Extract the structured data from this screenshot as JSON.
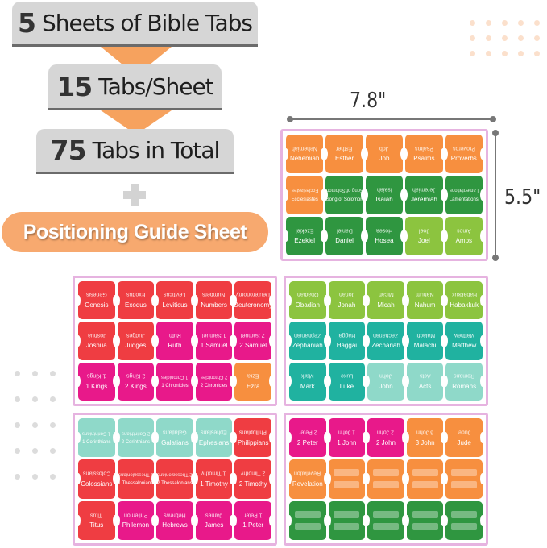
{
  "headline": {
    "line1": {
      "num": "5",
      "text": "Sheets of Bible Tabs"
    },
    "line2": {
      "num": "15",
      "text": "Tabs/Sheet"
    },
    "line3": {
      "num": "75",
      "text": "Tabs in Total"
    },
    "plus_icon": "plus",
    "guide": "Positioning Guide Sheet"
  },
  "dimensions": {
    "width": "7.8\"",
    "height": "5.5\""
  },
  "colors": {
    "O": "#f78f3f",
    "G": "#2f9640",
    "DG": "#2a8a3a",
    "L": "#8cc43f",
    "T": "#20b2a0",
    "LT": "#8fd9c9",
    "R": "#ef3d42",
    "P": "#e8198a",
    "banner": "#d6d6d6",
    "accent": "#f6a25e"
  },
  "sheets": [
    {
      "tabs": [
        [
          "Nehemiah",
          "O"
        ],
        [
          "Esther",
          "O"
        ],
        [
          "Job",
          "O"
        ],
        [
          "Psalms",
          "O"
        ],
        [
          "Proverbs",
          "O"
        ],
        [
          "Ecclesiastes",
          "O"
        ],
        [
          "Song of Solomon",
          "G"
        ],
        [
          "Isaiah",
          "G"
        ],
        [
          "Jeremiah",
          "G"
        ],
        [
          "Lamentations",
          "G"
        ],
        [
          "Ezekiel",
          "G"
        ],
        [
          "Daniel",
          "G"
        ],
        [
          "Hosea",
          "G"
        ],
        [
          "Joel",
          "L"
        ],
        [
          "Amos",
          "L"
        ]
      ]
    },
    {
      "tabs": [
        [
          "Genesis",
          "R"
        ],
        [
          "Exodus",
          "R"
        ],
        [
          "Leviticus",
          "R"
        ],
        [
          "Numbers",
          "R"
        ],
        [
          "Deuteronomy",
          "R"
        ],
        [
          "Joshua",
          "R"
        ],
        [
          "Judges",
          "R"
        ],
        [
          "Ruth",
          "P"
        ],
        [
          "1 Samuel",
          "P"
        ],
        [
          "2 Samuel",
          "P"
        ],
        [
          "1 Kings",
          "P"
        ],
        [
          "2 Kings",
          "P"
        ],
        [
          "1 Chronicles",
          "P"
        ],
        [
          "2 Chronicles",
          "P"
        ],
        [
          "Ezra",
          "O"
        ]
      ]
    },
    {
      "tabs": [
        [
          "Obadiah",
          "L"
        ],
        [
          "Jonah",
          "L"
        ],
        [
          "Micah",
          "L"
        ],
        [
          "Nahum",
          "L"
        ],
        [
          "Habakkuk",
          "L"
        ],
        [
          "Zephaniah",
          "T"
        ],
        [
          "Haggai",
          "T"
        ],
        [
          "Zechariah",
          "T"
        ],
        [
          "Malachi",
          "T"
        ],
        [
          "Matthew",
          "T"
        ],
        [
          "Mark",
          "T"
        ],
        [
          "Luke",
          "T"
        ],
        [
          "John",
          "LT"
        ],
        [
          "Acts",
          "LT"
        ],
        [
          "Romans",
          "LT"
        ]
      ]
    },
    {
      "tabs": [
        [
          "1 Corinthians",
          "LT"
        ],
        [
          "2 Corinthians",
          "LT"
        ],
        [
          "Galatians",
          "LT"
        ],
        [
          "Ephesians",
          "LT"
        ],
        [
          "Philippians",
          "R"
        ],
        [
          "Colossians",
          "R"
        ],
        [
          "1 Thessalonians",
          "R"
        ],
        [
          "2 Thessalonians",
          "R"
        ],
        [
          "1 Timothy",
          "R"
        ],
        [
          "2 Timothy",
          "R"
        ],
        [
          "Titus",
          "R"
        ],
        [
          "Philemon",
          "P"
        ],
        [
          "Hebrews",
          "P"
        ],
        [
          "James",
          "P"
        ],
        [
          "1 Peter",
          "P"
        ]
      ]
    },
    {
      "tabs": [
        [
          "2 Peter",
          "P"
        ],
        [
          "1 John",
          "P"
        ],
        [
          "2 John",
          "P"
        ],
        [
          "3 John",
          "O"
        ],
        [
          "Jude",
          "O"
        ],
        [
          "Revelation",
          "O"
        ],
        [
          "",
          "O"
        ],
        [
          "",
          "O"
        ],
        [
          "",
          "O"
        ],
        [
          "",
          "O"
        ],
        [
          "",
          "G"
        ],
        [
          "",
          "G"
        ],
        [
          "",
          "G"
        ],
        [
          "",
          "G"
        ],
        [
          "",
          "G"
        ]
      ]
    }
  ]
}
